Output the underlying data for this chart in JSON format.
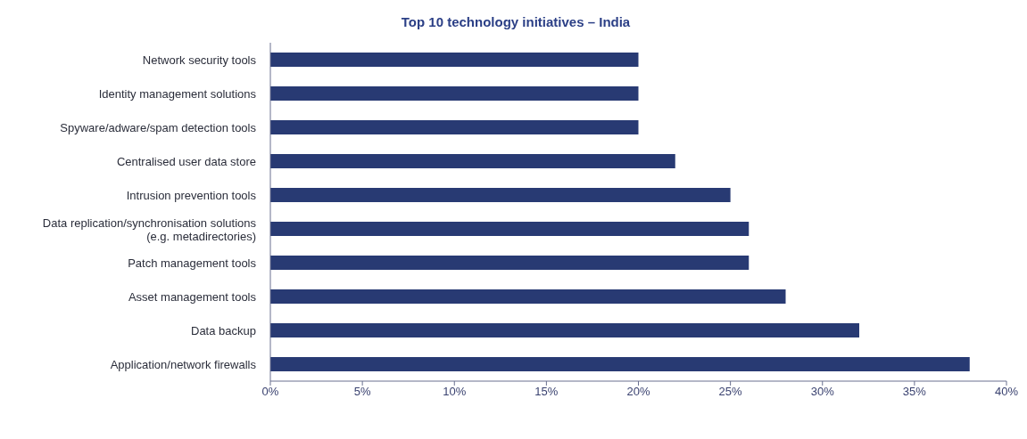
{
  "chart_data": {
    "type": "bar",
    "orientation": "horizontal",
    "title": "Top 10 technology initiatives – India",
    "categories": [
      "Network security tools",
      "Identity management solutions",
      "Spyware/adware/spam detection tools",
      "Centralised user data store",
      "Intrusion prevention tools",
      "Data replication/synchronisation solutions\n(e.g. metadirectories)",
      "Patch management tools",
      "Asset management tools",
      "Data backup",
      "Application/network firewalls"
    ],
    "values": [
      20,
      20,
      20,
      22,
      25,
      26,
      26,
      28,
      32,
      38
    ],
    "color": "#283a73",
    "xlim": [
      0,
      40
    ],
    "xticks": [
      {
        "value": 0,
        "label": "0%"
      },
      {
        "value": 5,
        "label": "5%"
      },
      {
        "value": 10,
        "label": "10%"
      },
      {
        "value": 15,
        "label": "15%"
      },
      {
        "value": 20,
        "label": "20%"
      },
      {
        "value": 25,
        "label": "25%"
      },
      {
        "value": 30,
        "label": "30%"
      },
      {
        "value": 35,
        "label": "35%"
      },
      {
        "value": 40,
        "label": "40%"
      }
    ],
    "grid": false,
    "legend": false
  }
}
